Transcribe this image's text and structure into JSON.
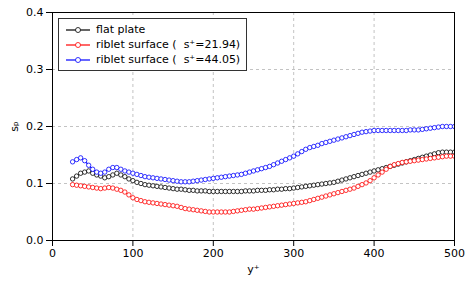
{
  "chart_data": {
    "type": "line",
    "xlabel": "y⁺",
    "ylabel": "sₚ",
    "xlim": [
      0,
      500
    ],
    "ylim": [
      0.0,
      0.4
    ],
    "xticks": [
      0,
      100,
      200,
      300,
      400,
      500
    ],
    "yticks": [
      {
        "value": 0.0,
        "label": "0.0"
      },
      0.1,
      0.2,
      0.3,
      0.4
    ],
    "grid": true,
    "legend": "upper left",
    "marker": "circle",
    "x": [
      25,
      30,
      35,
      40,
      45,
      50,
      55,
      60,
      65,
      70,
      75,
      80,
      85,
      90,
      95,
      100,
      105,
      110,
      115,
      120,
      125,
      130,
      135,
      140,
      145,
      150,
      155,
      160,
      165,
      170,
      175,
      180,
      185,
      190,
      195,
      200,
      205,
      210,
      215,
      220,
      225,
      230,
      235,
      240,
      245,
      250,
      255,
      260,
      265,
      270,
      275,
      280,
      285,
      290,
      295,
      300,
      305,
      310,
      315,
      320,
      325,
      330,
      335,
      340,
      345,
      350,
      355,
      360,
      365,
      370,
      375,
      380,
      385,
      390,
      395,
      400,
      405,
      410,
      415,
      420,
      425,
      430,
      435,
      440,
      445,
      450,
      455,
      460,
      465,
      470,
      475,
      480,
      485,
      490,
      495,
      500
    ],
    "series": [
      {
        "name": "flat plate",
        "color": "black",
        "values": [
          0.108,
          0.113,
          0.118,
          0.12,
          0.122,
          0.118,
          0.115,
          0.113,
          0.11,
          0.112,
          0.115,
          0.118,
          0.115,
          0.112,
          0.108,
          0.105,
          0.102,
          0.1,
          0.098,
          0.097,
          0.096,
          0.095,
          0.094,
          0.093,
          0.092,
          0.091,
          0.09,
          0.09,
          0.089,
          0.088,
          0.088,
          0.087,
          0.087,
          0.087,
          0.086,
          0.086,
          0.086,
          0.086,
          0.086,
          0.086,
          0.086,
          0.086,
          0.086,
          0.087,
          0.087,
          0.087,
          0.088,
          0.088,
          0.088,
          0.089,
          0.089,
          0.09,
          0.09,
          0.091,
          0.091,
          0.092,
          0.093,
          0.094,
          0.095,
          0.096,
          0.097,
          0.098,
          0.099,
          0.1,
          0.101,
          0.102,
          0.104,
          0.106,
          0.108,
          0.11,
          0.112,
          0.114,
          0.116,
          0.118,
          0.12,
          0.122,
          0.124,
          0.126,
          0.128,
          0.13,
          0.132,
          0.134,
          0.136,
          0.138,
          0.14,
          0.142,
          0.144,
          0.146,
          0.148,
          0.15,
          0.152,
          0.154,
          0.155,
          0.155,
          0.155,
          0.155
        ]
      },
      {
        "name": "riblet surface (  s⁺=21.94)",
        "color": "red",
        "values": [
          0.098,
          0.097,
          0.096,
          0.095,
          0.094,
          0.093,
          0.092,
          0.091,
          0.092,
          0.093,
          0.092,
          0.09,
          0.088,
          0.085,
          0.08,
          0.075,
          0.072,
          0.07,
          0.068,
          0.067,
          0.066,
          0.065,
          0.064,
          0.063,
          0.062,
          0.061,
          0.06,
          0.058,
          0.056,
          0.055,
          0.054,
          0.053,
          0.052,
          0.051,
          0.05,
          0.05,
          0.05,
          0.05,
          0.05,
          0.05,
          0.051,
          0.052,
          0.053,
          0.054,
          0.055,
          0.055,
          0.056,
          0.057,
          0.058,
          0.059,
          0.06,
          0.061,
          0.062,
          0.063,
          0.064,
          0.065,
          0.066,
          0.067,
          0.068,
          0.07,
          0.072,
          0.074,
          0.076,
          0.078,
          0.08,
          0.082,
          0.084,
          0.086,
          0.088,
          0.09,
          0.092,
          0.095,
          0.098,
          0.101,
          0.105,
          0.11,
          0.115,
          0.12,
          0.125,
          0.13,
          0.133,
          0.135,
          0.137,
          0.138,
          0.139,
          0.14,
          0.141,
          0.142,
          0.143,
          0.144,
          0.145,
          0.146,
          0.147,
          0.148,
          0.148,
          0.148
        ]
      },
      {
        "name": "riblet surface (  s⁺=44.05)",
        "color": "blue",
        "values": [
          0.138,
          0.142,
          0.145,
          0.14,
          0.132,
          0.125,
          0.12,
          0.118,
          0.12,
          0.125,
          0.128,
          0.128,
          0.125,
          0.122,
          0.12,
          0.118,
          0.116,
          0.114,
          0.112,
          0.111,
          0.11,
          0.109,
          0.108,
          0.107,
          0.106,
          0.105,
          0.104,
          0.103,
          0.103,
          0.103,
          0.104,
          0.105,
          0.106,
          0.107,
          0.108,
          0.109,
          0.11,
          0.111,
          0.112,
          0.113,
          0.114,
          0.115,
          0.116,
          0.118,
          0.12,
          0.122,
          0.124,
          0.126,
          0.128,
          0.13,
          0.133,
          0.136,
          0.139,
          0.142,
          0.145,
          0.148,
          0.152,
          0.156,
          0.16,
          0.163,
          0.165,
          0.167,
          0.17,
          0.172,
          0.174,
          0.176,
          0.178,
          0.18,
          0.182,
          0.184,
          0.186,
          0.188,
          0.19,
          0.191,
          0.192,
          0.193,
          0.193,
          0.193,
          0.193,
          0.193,
          0.193,
          0.193,
          0.193,
          0.193,
          0.194,
          0.194,
          0.194,
          0.195,
          0.196,
          0.197,
          0.198,
          0.199,
          0.2,
          0.2,
          0.2,
          0.2
        ]
      }
    ]
  }
}
